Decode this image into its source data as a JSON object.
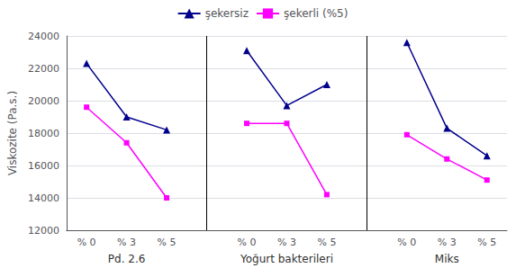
{
  "chart_data": {
    "type": "line",
    "categories": [
      "% 0",
      "% 3",
      "% 5",
      null,
      "% 0",
      "% 3",
      "% 5",
      null,
      "% 0",
      "% 3",
      "% 5"
    ],
    "annotations": [
      "Pd. 2.6",
      "Yoğurt bakterileri",
      "Miks"
    ],
    "y_label": "Viskozite (Pa.s.)",
    "series": [
      {
        "name": "şekersiz",
        "color": "#00008B",
        "marker": "triangle",
        "values": [
          22300,
          19000,
          18200,
          null,
          23100,
          19700,
          21000,
          null,
          23600,
          18300,
          16600
        ]
      },
      {
        "name": "şekerli (%5)",
        "color": "#FF00FF",
        "marker": "square",
        "values": [
          19600,
          17400,
          14000,
          null,
          18600,
          18600,
          14200,
          null,
          17900,
          16400,
          15100
        ]
      }
    ],
    "ylim": [
      12000,
      24000
    ],
    "yticks": [
      12000,
      14000,
      16000,
      18000,
      20000,
      22000,
      24000
    ],
    "grid": true,
    "legend": "top"
  }
}
